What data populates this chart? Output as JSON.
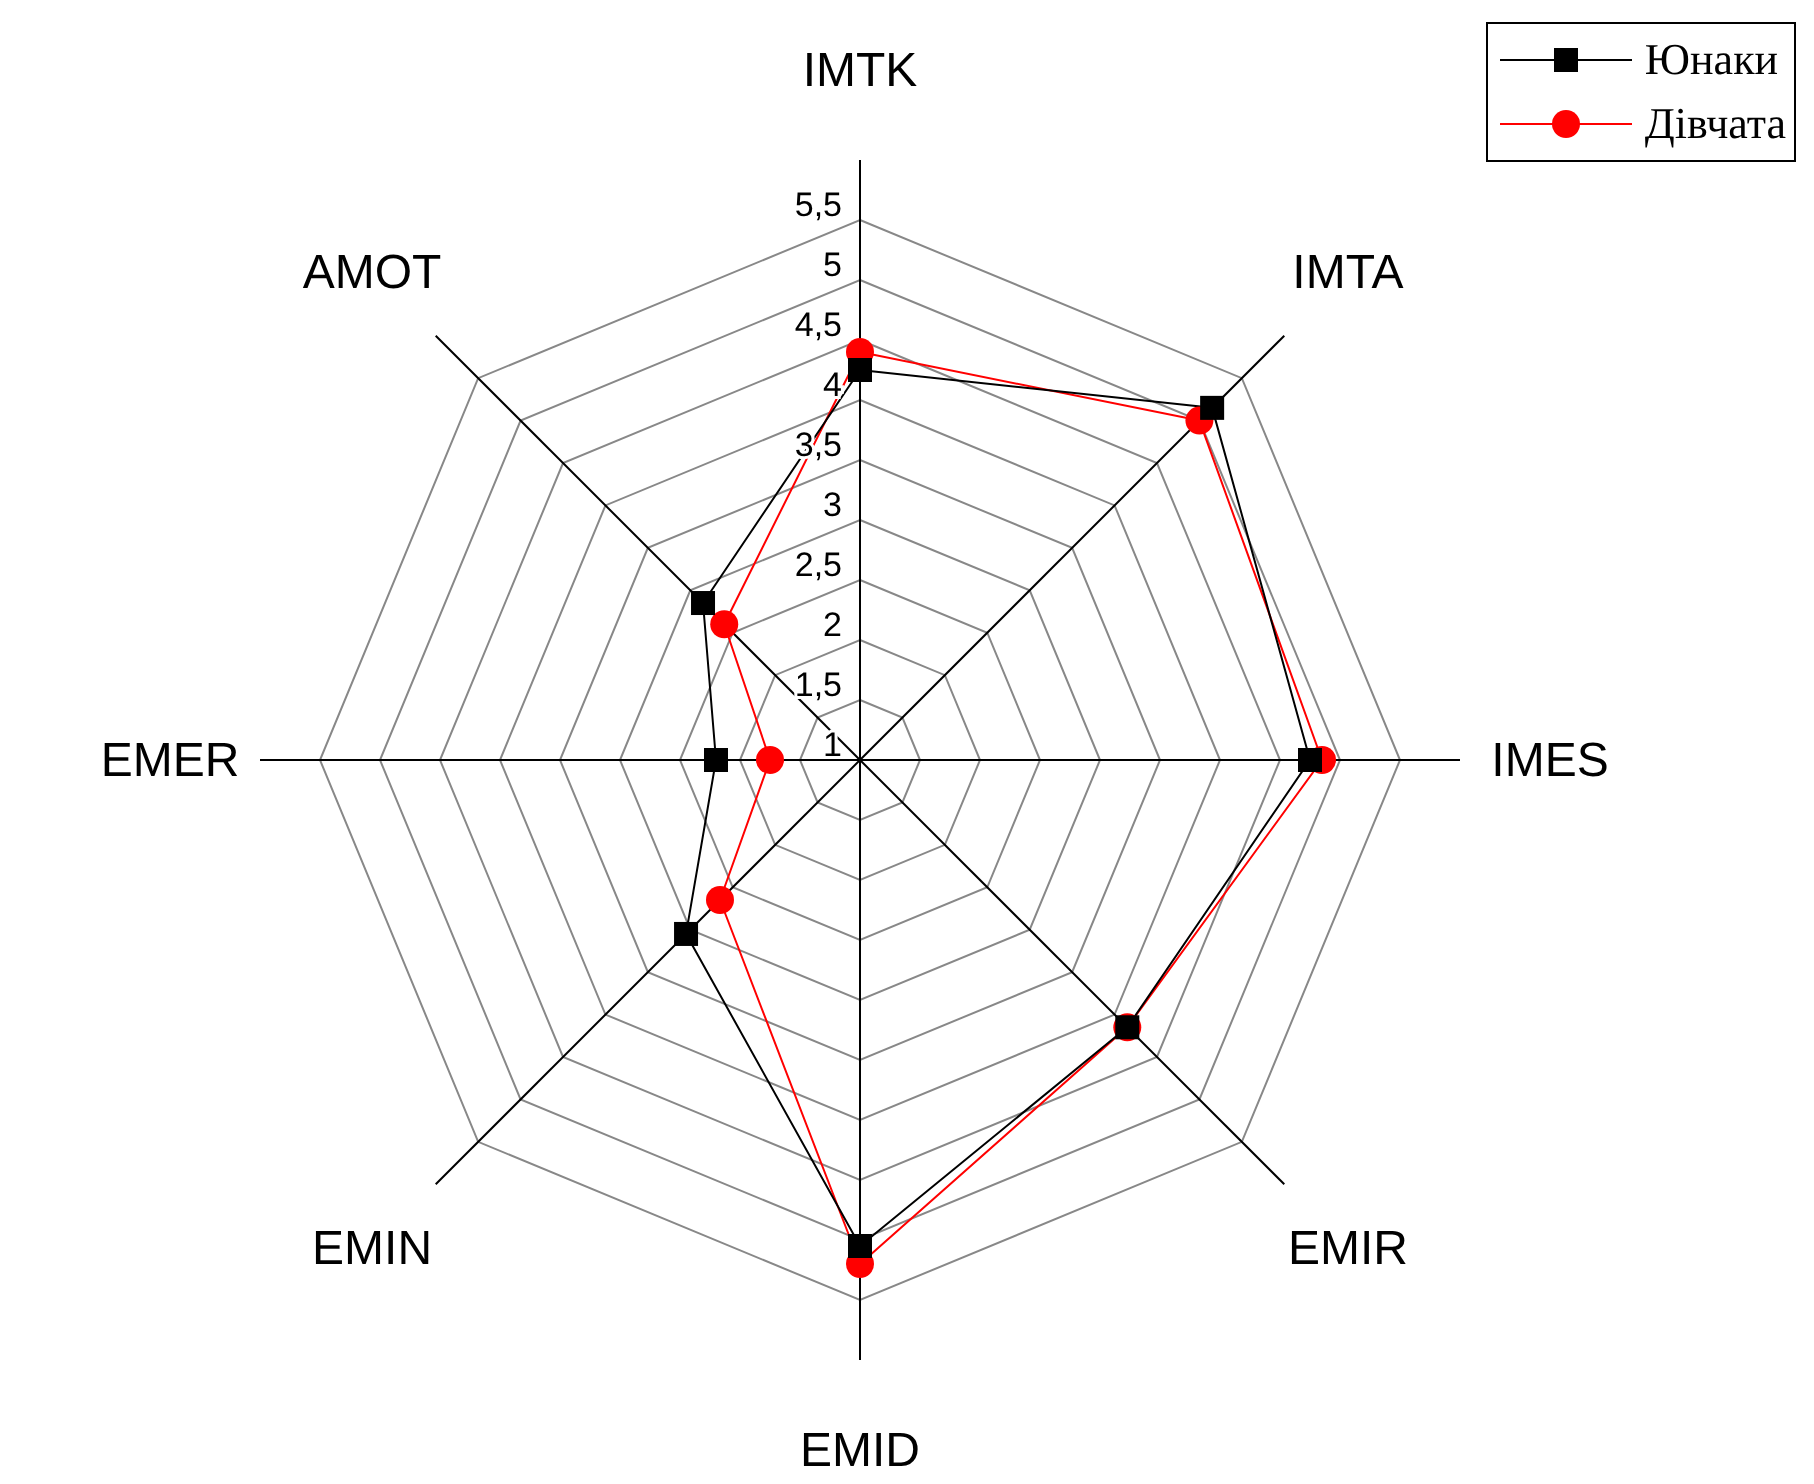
{
  "chart_data": {
    "type": "radar",
    "categories": [
      "IMTK",
      "IMTA",
      "IMES",
      "EMIR",
      "EMID",
      "EMIN",
      "EMER",
      "AMOT"
    ],
    "series": [
      {
        "name": "Юнаки",
        "color": "#000000",
        "marker": "square",
        "values": [
          4.25,
          5.15,
          4.75,
          4.15,
          5.05,
          3.05,
          2.2,
          2.85
        ]
      },
      {
        "name": "Дівчата",
        "color": "#ff0000",
        "marker": "circle",
        "values": [
          4.4,
          5,
          4.85,
          4.15,
          5.2,
          2.65,
          1.75,
          2.6
        ]
      }
    ],
    "ylim": [
      1,
      5.5
    ],
    "yticks": [
      1,
      {
        "value": 1.5,
        "label": "1,5"
      },
      2,
      {
        "value": 2.5,
        "label": "2,5"
      },
      3,
      {
        "value": 3.5,
        "label": "3,5"
      },
      4,
      {
        "value": 4.5,
        "label": "4,5"
      },
      5,
      {
        "value": 5.5,
        "label": "5,5"
      }
    ],
    "grid": true,
    "legend": "top right"
  }
}
